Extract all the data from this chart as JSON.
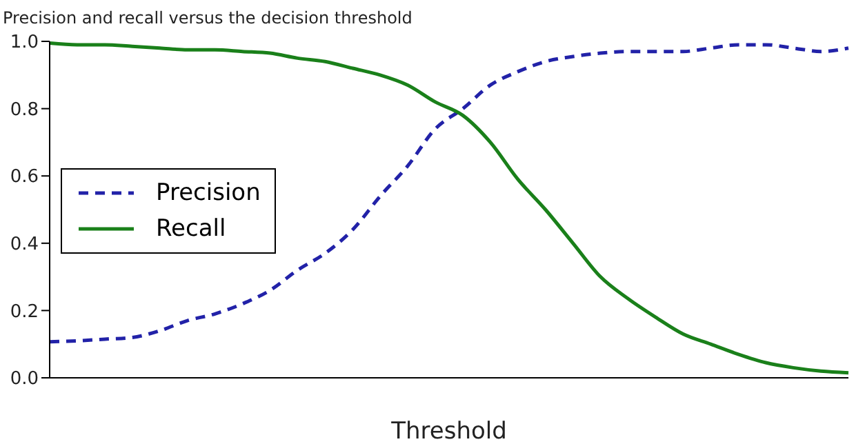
{
  "chart_data": {
    "type": "line",
    "title": "Precision and recall versus the decision threshold",
    "xlabel": "Threshold",
    "categories": [
      null,
      null,
      null,
      null,
      null,
      null,
      null,
      null,
      null,
      null,
      null,
      null,
      null,
      null,
      null,
      null,
      null,
      null,
      null,
      null,
      null,
      null,
      null,
      null,
      null,
      null,
      null,
      null,
      null,
      null
    ],
    "series": [
      {
        "name": "Precision",
        "color": "#2222a8",
        "line_style": "dashed",
        "values": [
          0.107,
          0.11,
          0.115,
          0.12,
          0.14,
          0.17,
          0.19,
          0.22,
          0.26,
          0.32,
          0.37,
          0.44,
          0.54,
          0.63,
          0.74,
          0.8,
          0.87,
          0.91,
          0.94,
          0.955,
          0.965,
          0.97,
          0.97,
          0.97,
          0.98,
          0.99,
          0.99,
          0.98,
          0.97,
          0.98
        ]
      },
      {
        "name": "Recall",
        "color": "#1a801a",
        "line_style": "solid",
        "values": [
          0.995,
          0.99,
          0.99,
          0.985,
          0.98,
          0.975,
          0.975,
          0.97,
          0.965,
          0.95,
          0.94,
          0.92,
          0.9,
          0.87,
          0.82,
          0.78,
          0.7,
          0.59,
          0.5,
          0.4,
          0.3,
          0.235,
          0.18,
          0.13,
          0.1,
          0.07,
          0.045,
          0.03,
          0.02,
          0.015
        ]
      }
    ],
    "ylim": [
      0,
      1
    ],
    "yticks": [
      {
        "value": 0,
        "label": "0.0"
      },
      0.2,
      0.4,
      0.6,
      0.8,
      {
        "value": 1,
        "label": "1.0"
      }
    ],
    "grid": false,
    "legend": "left",
    "marker": "none"
  }
}
